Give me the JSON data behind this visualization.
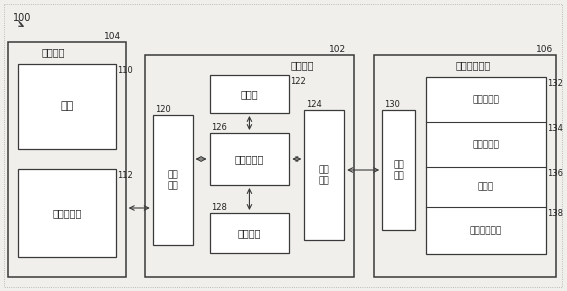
{
  "bg_color": "#f0efeb",
  "box_fill": "#ffffff",
  "border_dark": "#3a3a3a",
  "border_mid": "#555555",
  "fig_width": 5.67,
  "fig_height": 2.91,
  "dpi": 100,
  "label_100": "100",
  "label_102": "102",
  "label_104": "104",
  "label_106": "106",
  "label_110": "110",
  "label_112": "112",
  "label_120": "120",
  "label_122": "122",
  "label_124": "124",
  "label_126": "126",
  "label_128": "128",
  "label_130": "130",
  "label_132": "132",
  "label_134": "134",
  "label_136": "136",
  "label_138": "138",
  "spray_equip": "喷涂设备",
  "main_ctrl": "主控设备",
  "optical_meas": "光学测量设备",
  "spray_gun": "喷枪",
  "spray_robot": "喷涂机器人",
  "device_driver": "设备\n驱动",
  "display": "显示器",
  "central_ctrl": "中央控制器",
  "model_interface": "模型\n接口",
  "ctrl_btn": "控制按鈕",
  "data_interface": "数据\n接口",
  "light_curtain": "光幕传感器",
  "depth_camera": "深度摄像机",
  "transfer_table": "传送台",
  "motor_ctrl": "电机控制模块"
}
